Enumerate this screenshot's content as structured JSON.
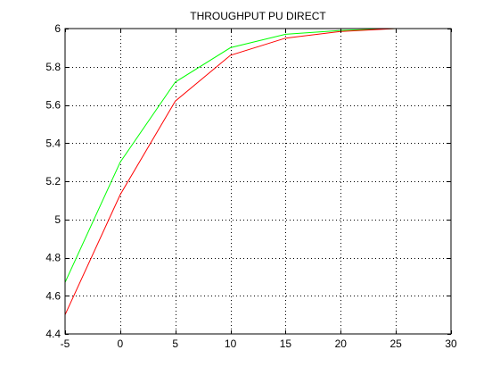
{
  "chart_data": {
    "type": "line",
    "title": "THROUGHPUT PU DIRECT",
    "xlabel": "",
    "ylabel": "",
    "xlim": [
      -5,
      30
    ],
    "ylim": [
      4.4,
      6
    ],
    "xticks": [
      -5,
      0,
      5,
      10,
      15,
      20,
      25,
      30
    ],
    "xtick_labels": [
      "-5",
      "0",
      "5",
      "10",
      "15",
      "20",
      "25",
      "30"
    ],
    "yticks": [
      4.4,
      4.6,
      4.8,
      5,
      5.2,
      5.4,
      5.6,
      5.8,
      6
    ],
    "ytick_labels": [
      "4.4",
      "4.6",
      "4.8",
      "5",
      "5.2",
      "5.4",
      "5.6",
      "5.8",
      "6"
    ],
    "grid": "dotted",
    "legend": "none",
    "x": [
      -5,
      0,
      5,
      10,
      15,
      20,
      25
    ],
    "series": [
      {
        "color": "#00ff00",
        "values": [
          4.67,
          5.3,
          5.72,
          5.9,
          5.97,
          5.99,
          6.0
        ]
      },
      {
        "color": "#ff0000",
        "values": [
          4.5,
          5.13,
          5.62,
          5.86,
          5.95,
          5.985,
          6.0
        ]
      }
    ]
  }
}
